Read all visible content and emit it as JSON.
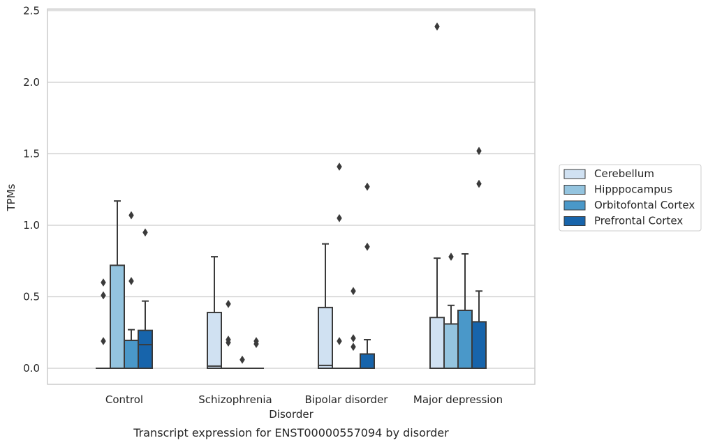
{
  "chart_data": {
    "type": "box",
    "title": "",
    "caption": "Transcript expression for ENST00000557094 by disorder",
    "xlabel": "Disorder",
    "ylabel": "TPMs",
    "ylim": [
      -0.11,
      2.52
    ],
    "yticks": [
      0.0,
      0.5,
      1.0,
      1.5,
      2.0,
      2.5
    ],
    "ytick_labels": [
      "0.0",
      "0.5",
      "1.0",
      "1.5",
      "2.0",
      "2.5"
    ],
    "grid": "horizontal",
    "legend_position": "right",
    "categories": [
      "Control",
      "Schizophrenia",
      "Bipolar disorder",
      "Major depression"
    ],
    "series": [
      {
        "name": "Cerebellum",
        "color": "#d0e1f2",
        "boxes": [
          {
            "category": "Control",
            "whislo": 0.0,
            "q1": 0.0,
            "med": 0.0,
            "q3": 0.0,
            "whishi": 0.0,
            "fliers": [
              0.6,
              0.51,
              0.19
            ]
          },
          {
            "category": "Schizophrenia",
            "whislo": 0.0,
            "q1": 0.0,
            "med": 0.015,
            "q3": 0.39,
            "whishi": 0.78,
            "fliers": []
          },
          {
            "category": "Bipolar disorder",
            "whislo": 0.0,
            "q1": 0.0,
            "med": 0.02,
            "q3": 0.425,
            "whishi": 0.87,
            "fliers": []
          },
          {
            "category": "Major depression",
            "whislo": 0.0,
            "q1": 0.0,
            "med": 0.0,
            "q3": 0.355,
            "whishi": 0.77,
            "fliers": [
              2.39
            ]
          }
        ]
      },
      {
        "name": "Hipppocampus",
        "color": "#94c4df",
        "boxes": [
          {
            "category": "Control",
            "whislo": 0.0,
            "q1": 0.0,
            "med": 0.0,
            "q3": 0.72,
            "whishi": 1.17,
            "fliers": []
          },
          {
            "category": "Schizophrenia",
            "whislo": 0.0,
            "q1": 0.0,
            "med": 0.0,
            "q3": 0.0,
            "whishi": 0.0,
            "fliers": [
              0.45,
              0.2,
              0.18
            ]
          },
          {
            "category": "Bipolar disorder",
            "whislo": 0.0,
            "q1": 0.0,
            "med": 0.0,
            "q3": 0.0,
            "whishi": 0.0,
            "fliers": [
              1.41,
              1.05,
              0.19
            ]
          },
          {
            "category": "Major depression",
            "whislo": 0.0,
            "q1": 0.0,
            "med": 0.0,
            "q3": 0.31,
            "whishi": 0.44,
            "fliers": [
              0.78
            ]
          }
        ]
      },
      {
        "name": "Orbitofontal Cortex",
        "color": "#4a98c9",
        "boxes": [
          {
            "category": "Control",
            "whislo": 0.0,
            "q1": 0.0,
            "med": 0.0,
            "q3": 0.195,
            "whishi": 0.27,
            "fliers": [
              1.07,
              0.61
            ]
          },
          {
            "category": "Schizophrenia",
            "whislo": 0.0,
            "q1": 0.0,
            "med": 0.0,
            "q3": 0.0,
            "whishi": 0.0,
            "fliers": [
              0.06
            ]
          },
          {
            "category": "Bipolar disorder",
            "whislo": 0.0,
            "q1": 0.0,
            "med": 0.0,
            "q3": 0.0,
            "whishi": 0.0,
            "fliers": [
              0.54,
              0.21,
              0.15
            ]
          },
          {
            "category": "Major depression",
            "whislo": 0.0,
            "q1": 0.0,
            "med": 0.0,
            "q3": 0.405,
            "whishi": 0.8,
            "fliers": []
          }
        ]
      },
      {
        "name": "Prefrontal Cortex",
        "color": "#1764ab",
        "boxes": [
          {
            "category": "Control",
            "whislo": 0.0,
            "q1": 0.0,
            "med": 0.165,
            "q3": 0.265,
            "whishi": 0.47,
            "fliers": [
              0.95
            ]
          },
          {
            "category": "Schizophrenia",
            "whislo": 0.0,
            "q1": 0.0,
            "med": 0.0,
            "q3": 0.0,
            "whishi": 0.0,
            "fliers": [
              0.19,
              0.17
            ]
          },
          {
            "category": "Bipolar disorder",
            "whislo": 0.0,
            "q1": 0.0,
            "med": 0.0,
            "q3": 0.1,
            "whishi": 0.2,
            "fliers": [
              1.27,
              0.85
            ]
          },
          {
            "category": "Major depression",
            "whislo": 0.0,
            "q1": 0.0,
            "med": 0.0,
            "q3": 0.325,
            "whishi": 0.54,
            "fliers": [
              1.52,
              1.29
            ]
          }
        ]
      }
    ]
  }
}
